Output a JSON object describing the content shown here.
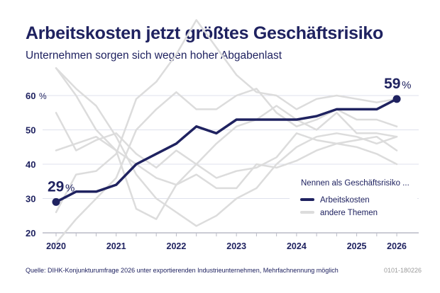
{
  "header": {
    "title": "Arbeitskosten jetzt größtes Geschäftsrisiko",
    "subtitle": "Unternehmen sorgen sich wegen hoher Abgabenlast"
  },
  "footer": {
    "source": "Quelle: DIHK-Konjunkturumfrage 2026 unter exportierenden Industrieunternehmen, Mehrfachnennung möglich",
    "code": "0101-180226"
  },
  "colors": {
    "highlight": "#1f2260",
    "other": "#dcdcdc",
    "grid": "#dfe1ec",
    "axis": "#b9bac6"
  },
  "chart_data": {
    "type": "line",
    "title": "Arbeitskosten jetzt größtes Geschäftsrisiko",
    "subtitle": "Unternehmen sorgen sich wegen hoher Abgabenlast",
    "xlabel": "",
    "ylabel": "%",
    "x_ticks_count": 18,
    "x_labels": [
      {
        "index": 0,
        "label": "2020"
      },
      {
        "index": 3,
        "label": "2021"
      },
      {
        "index": 6,
        "label": "2022"
      },
      {
        "index": 9,
        "label": "2023"
      },
      {
        "index": 12,
        "label": "2024"
      },
      {
        "index": 15,
        "label": "2025"
      },
      {
        "index": 17,
        "label": "2026"
      }
    ],
    "ylim": [
      20,
      60
    ],
    "y_ticks": [
      {
        "value": 60,
        "label": "60",
        "unit": "%"
      },
      {
        "value": 50,
        "label": "50",
        "unit": ""
      },
      {
        "value": 40,
        "label": "40",
        "unit": ""
      },
      {
        "value": 30,
        "label": "30",
        "unit": ""
      },
      {
        "value": 20,
        "label": "20",
        "unit": ""
      }
    ],
    "grid": true,
    "legend": {
      "title": "Nennen als Geschäftsrisiko ...",
      "placement": "right",
      "entries": [
        "Arbeitskosten",
        "andere Themen"
      ]
    },
    "annotations": [
      {
        "series": "Arbeitskosten",
        "index": 0,
        "value": "29",
        "unit": "%"
      },
      {
        "series": "Arbeitskosten",
        "index": 17,
        "value": "59",
        "unit": "%"
      }
    ],
    "series": [
      {
        "name": "Arbeitskosten",
        "highlight": true,
        "values": [
          29,
          32,
          32,
          34,
          40,
          43,
          46,
          51,
          49,
          53,
          53,
          53,
          53,
          54,
          56,
          56,
          56,
          59
        ]
      },
      {
        "name": "andere Themen 1",
        "highlight": false,
        "values": [
          68,
          62,
          57,
          48,
          37,
          30,
          26,
          22,
          25,
          30,
          33,
          40,
          45,
          48,
          49,
          48,
          46,
          48
        ]
      },
      {
        "name": "andere Themen 2",
        "highlight": false,
        "values": [
          55,
          44,
          47,
          49,
          43,
          39,
          44,
          40,
          46,
          51,
          53,
          57,
          53,
          50,
          55,
          49,
          49,
          48
        ]
      },
      {
        "name": "andere Themen 3",
        "highlight": false,
        "values": [
          26,
          37,
          38,
          43,
          59,
          64,
          72,
          82,
          74,
          66,
          61,
          60,
          56,
          59,
          60,
          59,
          58,
          59
        ]
      },
      {
        "name": "andere Themen 4",
        "highlight": false,
        "values": [
          17,
          24,
          30,
          36,
          50,
          56,
          61,
          56,
          56,
          60,
          62,
          55,
          51,
          53,
          56,
          53,
          53,
          51
        ]
      },
      {
        "name": "andere Themen 5",
        "highlight": false,
        "values": [
          68,
          60,
          50,
          44,
          40,
          36,
          34,
          40,
          36,
          38,
          39,
          42,
          49,
          47,
          46,
          47,
          48,
          44
        ]
      },
      {
        "name": "andere Themen 6",
        "highlight": false,
        "values": [
          44,
          46,
          48,
          44,
          27,
          24,
          34,
          37,
          33,
          33,
          40,
          39,
          41,
          44,
          46,
          45,
          43,
          40
        ]
      }
    ]
  }
}
